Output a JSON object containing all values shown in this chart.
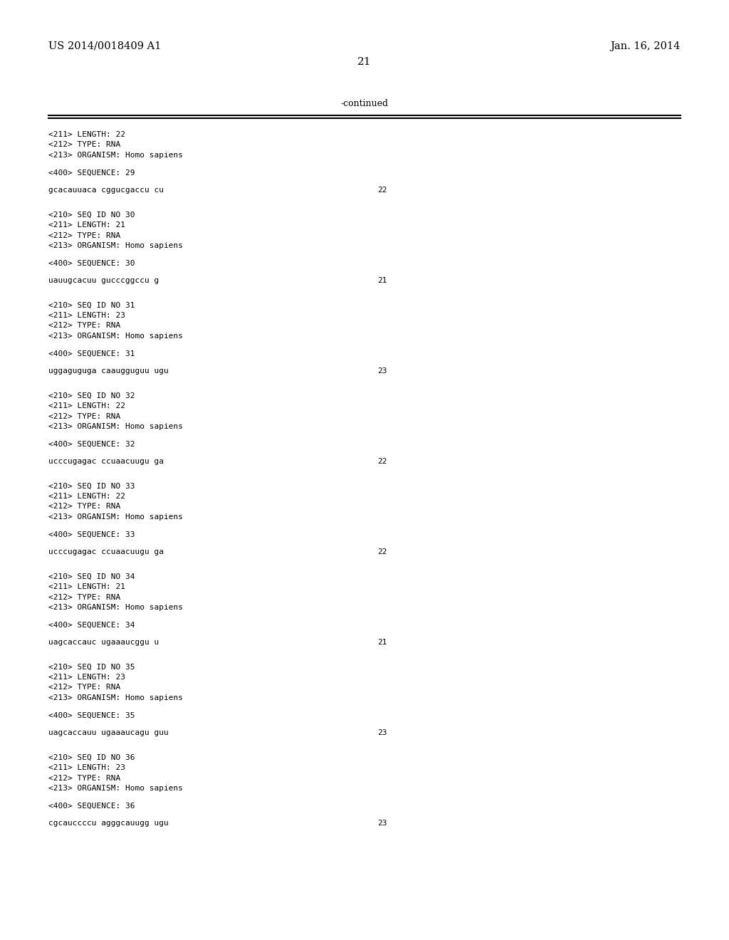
{
  "bg_color": "#ffffff",
  "header_left": "US 2014/0018409 A1",
  "header_right": "Jan. 16, 2014",
  "page_number": "21",
  "continued_label": "-continued",
  "entries": [
    {
      "info_lines": [
        "<211> LENGTH: 22",
        "<212> TYPE: RNA",
        "<213> ORGANISM: Homo sapiens"
      ],
      "seq_label": "<400> SEQUENCE: 29",
      "sequence": "gcacauuaca cggucgaccu cu",
      "seq_len": "22"
    },
    {
      "info_lines": [
        "<210> SEQ ID NO 30",
        "<211> LENGTH: 21",
        "<212> TYPE: RNA",
        "<213> ORGANISM: Homo sapiens"
      ],
      "seq_label": "<400> SEQUENCE: 30",
      "sequence": "uauugcacuu gucccggccu g",
      "seq_len": "21"
    },
    {
      "info_lines": [
        "<210> SEQ ID NO 31",
        "<211> LENGTH: 23",
        "<212> TYPE: RNA",
        "<213> ORGANISM: Homo sapiens"
      ],
      "seq_label": "<400> SEQUENCE: 31",
      "sequence": "uggaguguga caaugguguu ugu",
      "seq_len": "23"
    },
    {
      "info_lines": [
        "<210> SEQ ID NO 32",
        "<211> LENGTH: 22",
        "<212> TYPE: RNA",
        "<213> ORGANISM: Homo sapiens"
      ],
      "seq_label": "<400> SEQUENCE: 32",
      "sequence": "ucccugagac ccuaacuugu ga",
      "seq_len": "22"
    },
    {
      "info_lines": [
        "<210> SEQ ID NO 33",
        "<211> LENGTH: 22",
        "<212> TYPE: RNA",
        "<213> ORGANISM: Homo sapiens"
      ],
      "seq_label": "<400> SEQUENCE: 33",
      "sequence": "ucccugagac ccuaacuugu ga",
      "seq_len": "22"
    },
    {
      "info_lines": [
        "<210> SEQ ID NO 34",
        "<211> LENGTH: 21",
        "<212> TYPE: RNA",
        "<213> ORGANISM: Homo sapiens"
      ],
      "seq_label": "<400> SEQUENCE: 34",
      "sequence": "uagcaccauc ugaaaucggu u",
      "seq_len": "21"
    },
    {
      "info_lines": [
        "<210> SEQ ID NO 35",
        "<211> LENGTH: 23",
        "<212> TYPE: RNA",
        "<213> ORGANISM: Homo sapiens"
      ],
      "seq_label": "<400> SEQUENCE: 35",
      "sequence": "uagcaccauu ugaaaucagu guu",
      "seq_len": "23"
    },
    {
      "info_lines": [
        "<210> SEQ ID NO 36",
        "<211> LENGTH: 23",
        "<212> TYPE: RNA",
        "<213> ORGANISM: Homo sapiens"
      ],
      "seq_label": "<400> SEQUENCE: 36",
      "sequence": "cgcauccccu agggcauugg ugu",
      "seq_len": "23"
    }
  ]
}
